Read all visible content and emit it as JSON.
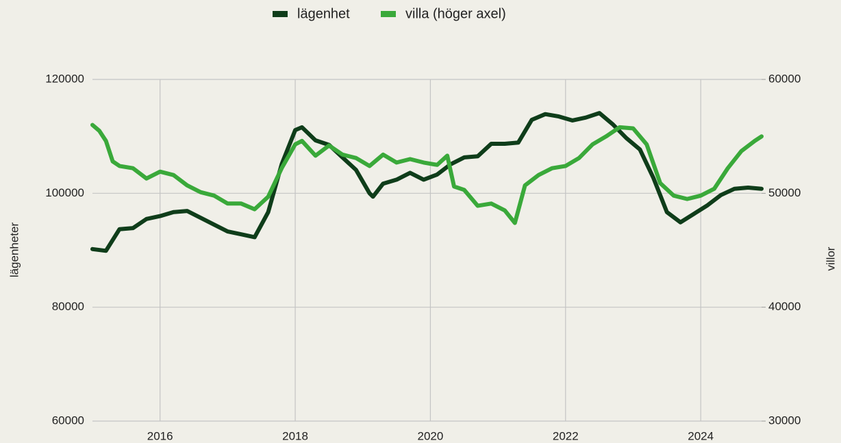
{
  "chart_data": {
    "type": "line",
    "y_label": "lägenheter",
    "y2_label": "villor",
    "xlim": [
      2015.0,
      2024.9
    ],
    "xticks": [
      2016,
      2018,
      2020,
      2022,
      2024
    ],
    "ylim": [
      60000,
      120000
    ],
    "yticks": [
      60000,
      80000,
      100000,
      120000
    ],
    "y2lim": [
      30000,
      60000
    ],
    "y2ticks": [
      30000,
      40000,
      50000,
      60000
    ],
    "grid": true,
    "legend": "top",
    "series": [
      {
        "name": "lägenhet",
        "color": "#0f3d1a",
        "x": [
          2015.0,
          2015.2,
          2015.4,
          2015.6,
          2015.8,
          2016.0,
          2016.2,
          2016.4,
          2016.6,
          2016.8,
          2017.0,
          2017.2,
          2017.4,
          2017.6,
          2017.8,
          2018.0,
          2018.1,
          2018.3,
          2018.5,
          2018.7,
          2018.9,
          2019.1,
          2019.15,
          2019.3,
          2019.5,
          2019.7,
          2019.9,
          2020.1,
          2020.3,
          2020.5,
          2020.7,
          2020.9,
          2021.1,
          2021.3,
          2021.5,
          2021.7,
          2021.9,
          2022.1,
          2022.3,
          2022.5,
          2022.7,
          2022.9,
          2023.1,
          2023.3,
          2023.5,
          2023.7,
          2023.9,
          2024.1,
          2024.3,
          2024.5,
          2024.7,
          2024.9
        ],
        "values": [
          90200,
          89900,
          93700,
          93900,
          95500,
          96000,
          96700,
          96900,
          95700,
          94500,
          93300,
          92800,
          92300,
          96700,
          105100,
          111100,
          111600,
          109300,
          108500,
          106300,
          104100,
          100000,
          99400,
          101700,
          102400,
          103600,
          102400,
          103300,
          105100,
          106300,
          106500,
          108700,
          108700,
          108900,
          112900,
          113900,
          113500,
          112800,
          113300,
          114100,
          112100,
          109700,
          107700,
          102700,
          96700,
          94900,
          96400,
          97900,
          99700,
          100800,
          101000,
          100800
        ]
      },
      {
        "name": "villa (höger axel)",
        "color": "#3aa93a",
        "axis": "y2",
        "x": [
          2015.0,
          2015.1,
          2015.2,
          2015.3,
          2015.4,
          2015.6,
          2015.8,
          2016.0,
          2016.2,
          2016.4,
          2016.6,
          2016.8,
          2017.0,
          2017.2,
          2017.4,
          2017.6,
          2017.8,
          2018.0,
          2018.1,
          2018.3,
          2018.5,
          2018.7,
          2018.9,
          2019.1,
          2019.3,
          2019.5,
          2019.7,
          2019.9,
          2020.1,
          2020.25,
          2020.35,
          2020.5,
          2020.7,
          2020.9,
          2021.1,
          2021.25,
          2021.4,
          2021.6,
          2021.8,
          2022.0,
          2022.2,
          2022.4,
          2022.6,
          2022.8,
          2023.0,
          2023.2,
          2023.4,
          2023.6,
          2023.8,
          2024.0,
          2024.2,
          2024.4,
          2024.6,
          2024.8,
          2024.9
        ],
        "values": [
          56000,
          55500,
          54600,
          52800,
          52400,
          52200,
          51300,
          51900,
          51600,
          50700,
          50100,
          49800,
          49100,
          49100,
          48600,
          49700,
          52200,
          54300,
          54600,
          53300,
          54200,
          53400,
          53100,
          52400,
          53400,
          52700,
          53000,
          52700,
          52500,
          53300,
          50600,
          50300,
          48900,
          49100,
          48500,
          47400,
          50700,
          51600,
          52200,
          52400,
          53100,
          54300,
          55000,
          55800,
          55700,
          54300,
          50900,
          49800,
          49500,
          49800,
          50400,
          52200,
          53700,
          54600,
          55000
        ]
      }
    ]
  }
}
